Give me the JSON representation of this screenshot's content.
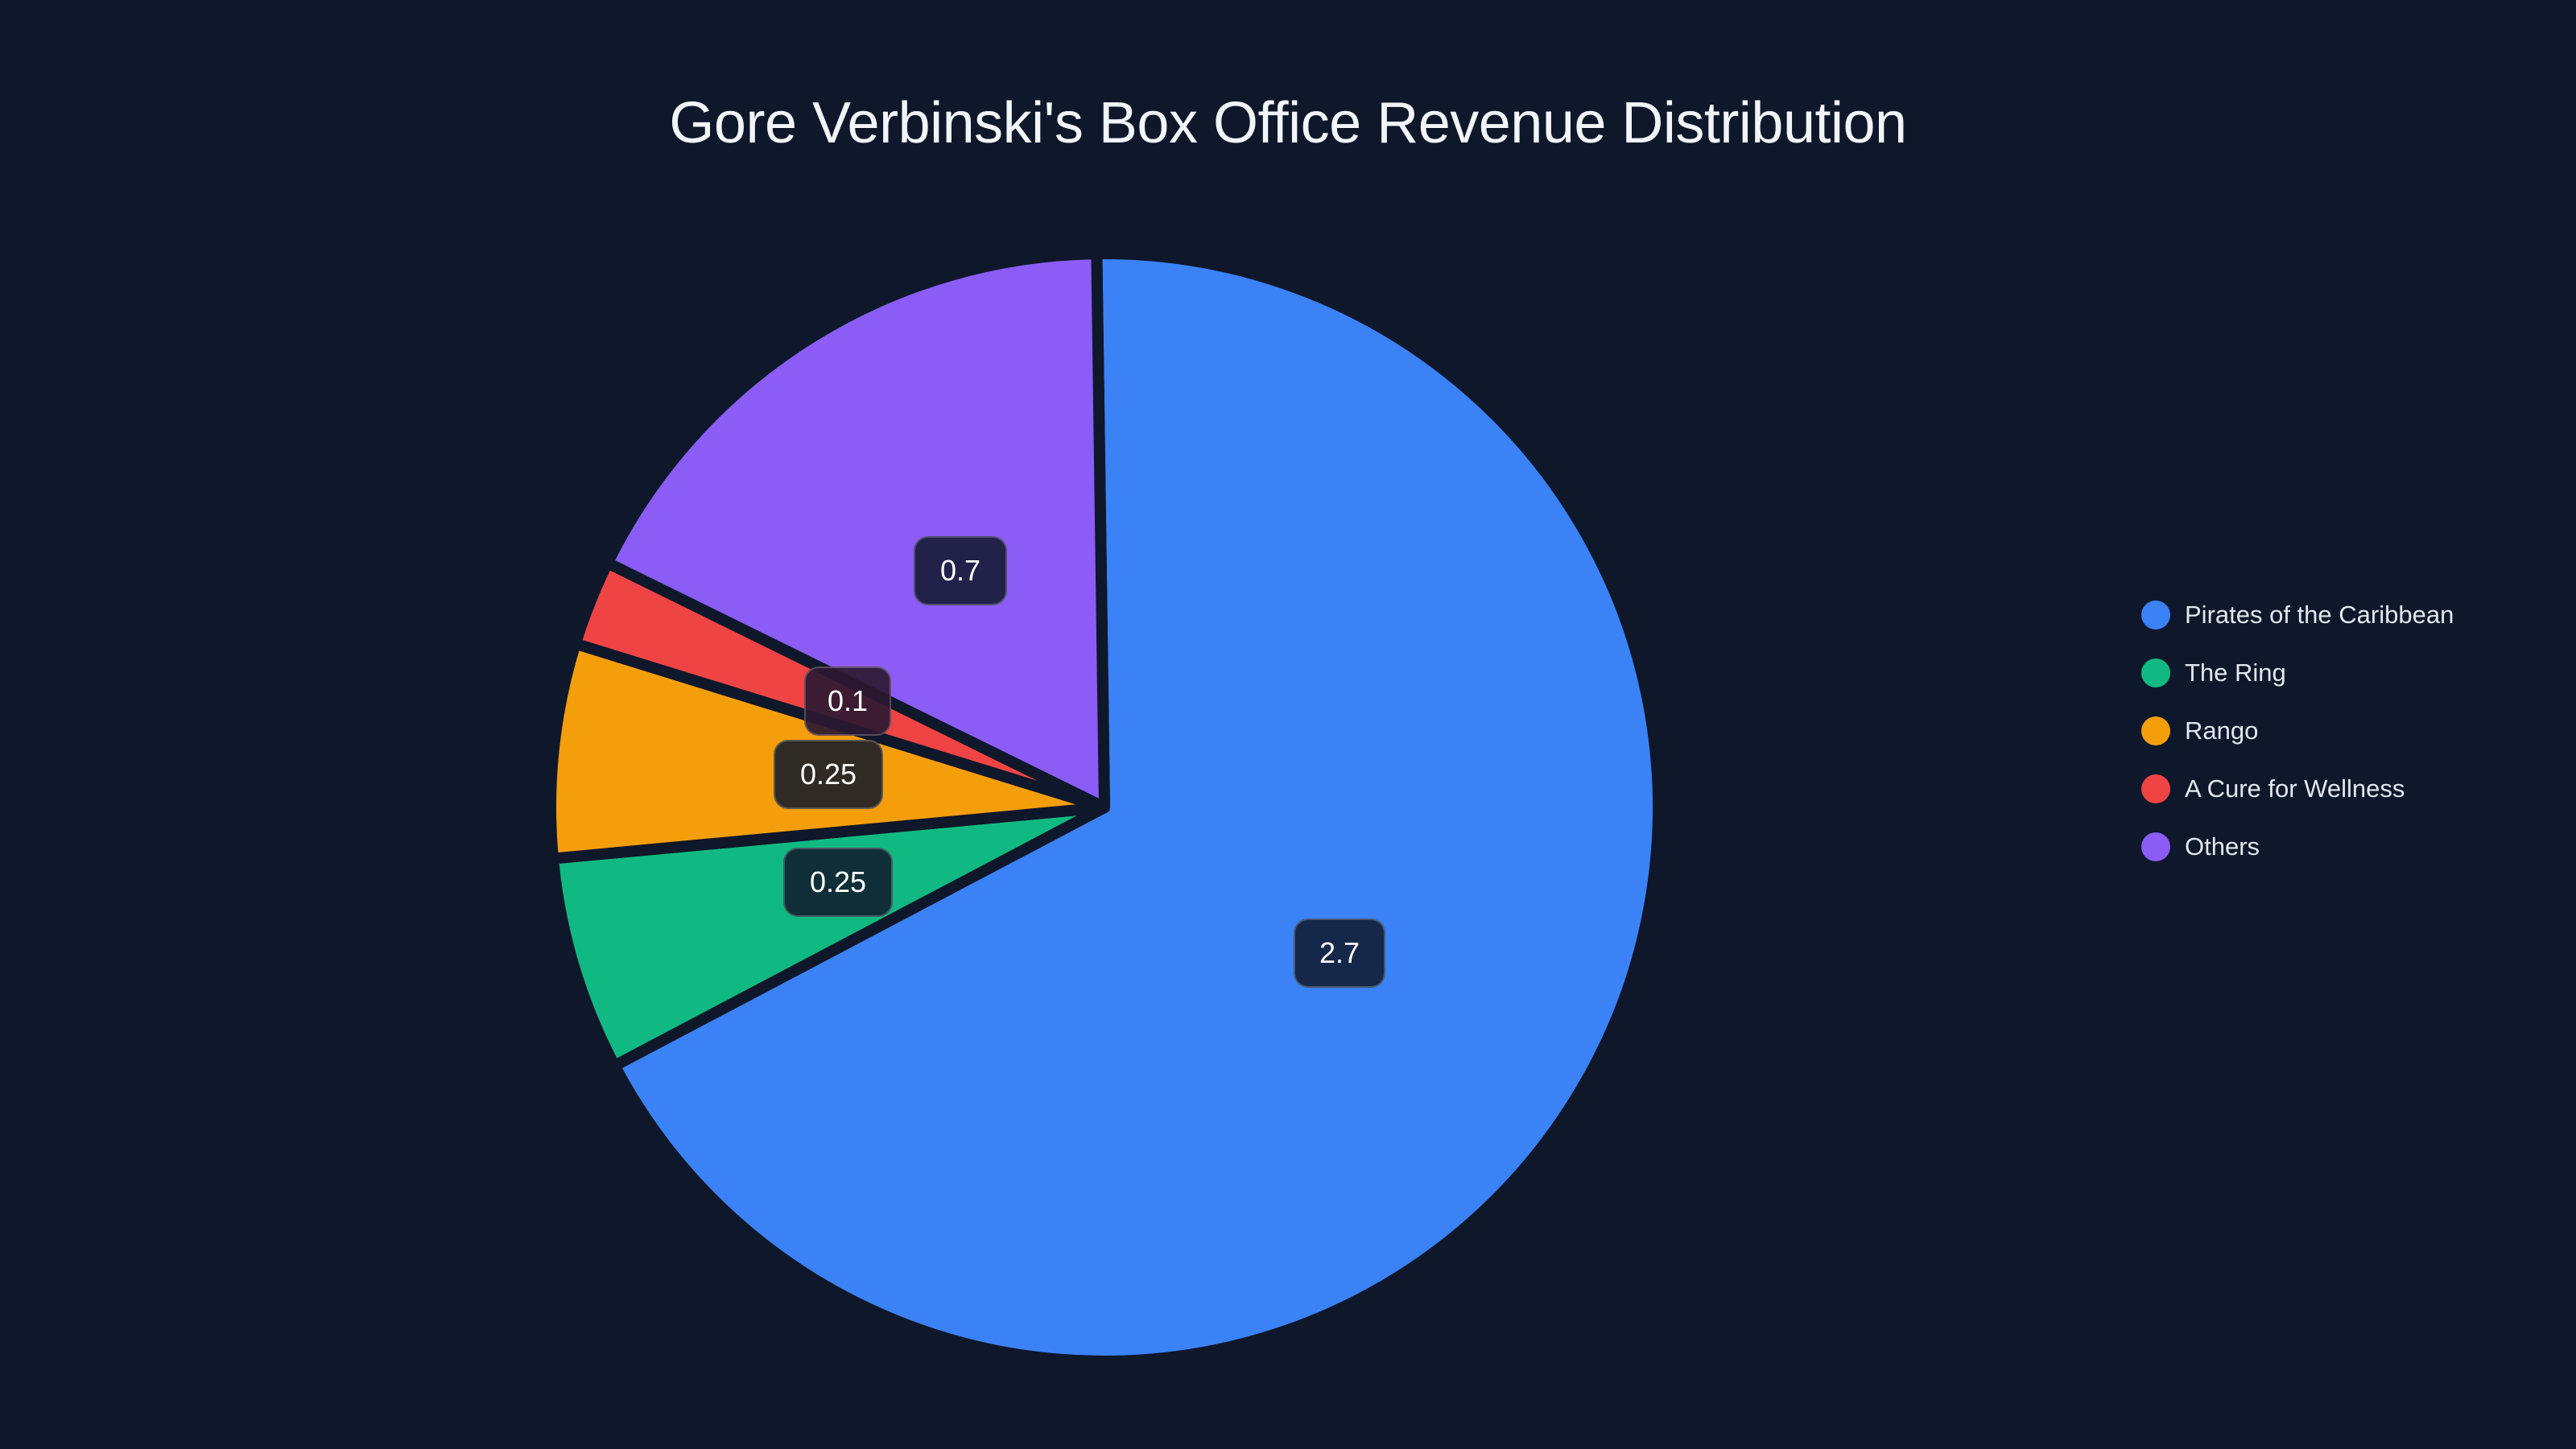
{
  "title": "Gore Verbinski's Box Office Revenue Distribution",
  "chart_data": {
    "type": "pie",
    "title": "Gore Verbinski's Box Office Revenue Distribution",
    "categories": [
      "Pirates of the Caribbean",
      "The Ring",
      "Rango",
      "A Cure for Wellness",
      "Others"
    ],
    "values": [
      2.7,
      0.25,
      0.25,
      0.1,
      0.7
    ],
    "colors": [
      "#3b82f6",
      "#10b981",
      "#f59e0b",
      "#ef4444",
      "#8b5cf6"
    ],
    "data_labels": [
      "2.7",
      "0.25",
      "0.25",
      "0.1",
      "0.7"
    ],
    "legend_position": "right",
    "start_angle_deg": -90,
    "direction": "clockwise"
  },
  "legend": {
    "items": [
      {
        "label": "Pirates of the Caribbean",
        "color": "#3b82f6"
      },
      {
        "label": "The Ring",
        "color": "#10b981"
      },
      {
        "label": "Rango",
        "color": "#f59e0b"
      },
      {
        "label": "A Cure for Wellness",
        "color": "#ef4444"
      },
      {
        "label": "Others",
        "color": "#8b5cf6"
      }
    ]
  },
  "labels": {
    "pirates": "2.7",
    "ring": "0.25",
    "rango": "0.25",
    "cure": "0.1",
    "others": "0.7"
  }
}
